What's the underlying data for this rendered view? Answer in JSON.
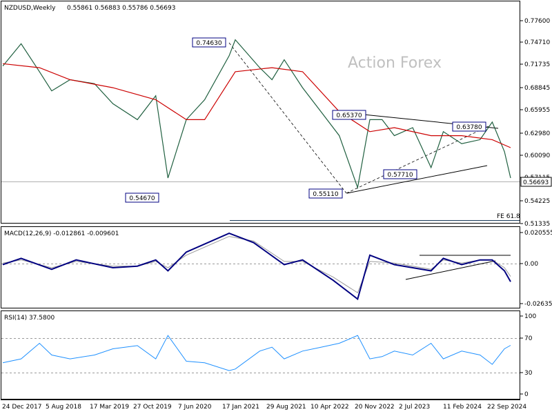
{
  "header": {
    "symbol_label": "NZDUSD,Weekly",
    "ohlc": "0.55861 0.56883 0.55786 0.56693",
    "watermark": "Action Forex"
  },
  "price_axis": {
    "ticks": [
      "0.77600",
      "0.74710",
      "0.71735",
      "0.68845",
      "0.65955",
      "0.62980",
      "0.60090",
      "0.57115",
      "0.54225",
      "0.51335"
    ],
    "current_price": "0.56693"
  },
  "macd": {
    "label": "MACD(12,26,9) -0.012861 -0.009601",
    "ticks": [
      "0.020555",
      "0.00",
      "-0.026356"
    ]
  },
  "rsi": {
    "label": "RSI(14) 37.5800",
    "ticks": [
      "100",
      "70",
      "30",
      "0"
    ]
  },
  "time_axis": {
    "labels": [
      "24 Dec 2017",
      "5 Aug 2018",
      "17 Mar 2019",
      "27 Oct 2019",
      "7 Jun 2020",
      "17 Jan 2021",
      "29 Aug 2021",
      "10 Apr 2022",
      "20 Nov 2022",
      "2 Jul 2023",
      "11 Feb 2024",
      "22 Sep 2024"
    ]
  },
  "annotations": {
    "fe_label": "FE 61.8",
    "price_marks": [
      "0.74630",
      "0.54670",
      "0.55110",
      "0.65370",
      "0.57710",
      "0.63780"
    ]
  },
  "chart_data": [
    {
      "type": "line",
      "title": "NZDUSD,Weekly",
      "ylim": [
        0.51,
        0.788
      ],
      "series": [
        {
          "name": "NZDUSD,Weekly",
          "x": [
            "Dec 2017",
            "Mar 2018",
            "Jun 2018",
            "Aug 2018",
            "Nov 2018",
            "Mar 2019",
            "Jun 2019",
            "Oct 2019",
            "Jan 2020",
            "Mar 2020",
            "Jun 2020",
            "Sep 2020",
            "Jan 2021",
            "Feb 2021",
            "Jun 2021",
            "Aug 2021",
            "Oct 2021",
            "Jan 2022",
            "Apr 2022",
            "Jul 2022",
            "Oct 2022",
            "Dec 2022",
            "Feb 2023",
            "Apr 2023",
            "Jul 2023",
            "Oct 2023",
            "Dec 2023",
            "Mar 2024",
            "Jun 2024",
            "Aug 2024",
            "Oct 2024",
            "Nov 2024"
          ],
          "values": [
            0.707,
            0.735,
            0.7,
            0.676,
            0.69,
            0.685,
            0.66,
            0.64,
            0.67,
            0.567,
            0.64,
            0.665,
            0.72,
            0.74,
            0.705,
            0.69,
            0.715,
            0.68,
            0.65,
            0.62,
            0.555,
            0.64,
            0.64,
            0.62,
            0.63,
            0.58,
            0.625,
            0.61,
            0.615,
            0.637,
            0.6,
            0.567
          ]
        },
        {
          "name": "",
          "x": [
            "Dec 2017",
            "Jun 2018",
            "Nov 2018",
            "Jun 2019",
            "Jan 2020",
            "Jun 2020",
            "Sep 2020",
            "Feb 2021",
            "Aug 2021",
            "Jan 2022",
            "Jul 2022",
            "Dec 2022",
            "Apr 2023",
            "Oct 2023",
            "Mar 2024",
            "Aug 2024",
            "Nov 2024"
          ],
          "values": [
            0.71,
            0.705,
            0.69,
            0.68,
            0.665,
            0.64,
            0.64,
            0.7,
            0.705,
            0.7,
            0.65,
            0.625,
            0.63,
            0.62,
            0.62,
            0.615,
            0.605
          ]
        }
      ]
    },
    {
      "type": "line",
      "title": "MACD(12,26,9) -0.012861 -0.009601",
      "ylim": [
        -0.03,
        0.022
      ],
      "series": [
        {
          "name": "MACD",
          "x": [
            "Dec 2017",
            "Mar 2018",
            "Aug 2018",
            "Dec 2018",
            "Jun 2019",
            "Oct 2019",
            "Jan 2020",
            "Mar 2020",
            "Jun 2020",
            "Jan 2021",
            "May 2021",
            "Oct 2021",
            "Jan 2022",
            "Jun 2022",
            "Oct 2022",
            "Dec 2022",
            "Apr 2023",
            "Oct 2023",
            "Dec 2023",
            "Mar 2024",
            "Jun 2024",
            "Aug 2024",
            "Oct 2024",
            "Nov 2024"
          ],
          "values": [
            -0.002,
            0.002,
            -0.005,
            0.001,
            -0.004,
            -0.003,
            0.001,
            -0.006,
            0.006,
            0.018,
            0.012,
            -0.002,
            0.001,
            -0.012,
            -0.024,
            0.004,
            -0.002,
            -0.006,
            0.002,
            -0.002,
            0.001,
            0.001,
            -0.006,
            -0.0129
          ]
        },
        {
          "name": "Signal",
          "x": [
            "Dec 2017",
            "Mar 2018",
            "Aug 2018",
            "Dec 2018",
            "Jun 2019",
            "Oct 2019",
            "Jan 2020",
            "Mar 2020",
            "Jun 2020",
            "Jan 2021",
            "May 2021",
            "Oct 2021",
            "Jan 2022",
            "Jun 2022",
            "Oct 2022",
            "Dec 2022",
            "Apr 2023",
            "Oct 2023",
            "Dec 2023",
            "Mar 2024",
            "Jun 2024",
            "Aug 2024",
            "Oct 2024",
            "Nov 2024"
          ],
          "values": [
            -0.001,
            0.001,
            -0.004,
            0.0,
            -0.003,
            -0.003,
            0.0,
            -0.004,
            0.004,
            0.016,
            0.013,
            0.0,
            0.0,
            -0.01,
            -0.02,
            0.0,
            -0.001,
            -0.005,
            0.001,
            -0.001,
            0.001,
            0.001,
            -0.004,
            -0.0096
          ]
        }
      ]
    },
    {
      "type": "line",
      "title": "RSI(14) 37.5800",
      "ylim": [
        0,
        100
      ],
      "series": [
        {
          "name": "RSI(14)",
          "x": [
            "Dec 2017",
            "Mar 2018",
            "Jun 2018",
            "Aug 2018",
            "Nov 2018",
            "Mar 2019",
            "Jun 2019",
            "Oct 2019",
            "Jan 2020",
            "Mar 2020",
            "Jun 2020",
            "Sep 2020",
            "Jan 2021",
            "Feb 2021",
            "Jun 2021",
            "Aug 2021",
            "Oct 2021",
            "Jan 2022",
            "Apr 2022",
            "Jul 2022",
            "Oct 2022",
            "Dec 2022",
            "Feb 2023",
            "Apr 2023",
            "Jul 2023",
            "Oct 2023",
            "Dec 2023",
            "Mar 2024",
            "Jun 2024",
            "Aug 2024",
            "Oct 2024",
            "Nov 2024"
          ],
          "values": [
            60,
            55,
            35,
            50,
            55,
            50,
            42,
            38,
            55,
            25,
            58,
            60,
            70,
            68,
            45,
            40,
            55,
            45,
            40,
            35,
            25,
            55,
            52,
            45,
            50,
            35,
            55,
            45,
            50,
            62,
            42,
            37.58
          ]
        }
      ]
    }
  ]
}
